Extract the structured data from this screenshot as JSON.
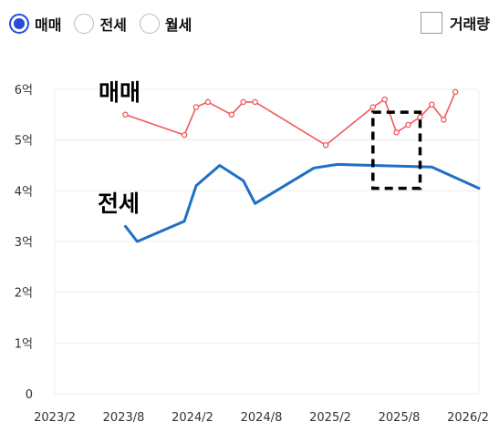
{
  "controls": {
    "radios": [
      {
        "label": "매매",
        "selected": true
      },
      {
        "label": "전세",
        "selected": false
      },
      {
        "label": "월세",
        "selected": false
      }
    ],
    "volume_checkbox": {
      "label": "거래량",
      "checked": false
    },
    "accent_color": "#2a4bd7"
  },
  "chart_data": {
    "type": "line",
    "x_labels": [
      "2023/2",
      "2023/8",
      "2024/2",
      "2024/8",
      "2025/2",
      "2025/8",
      "2026/2"
    ],
    "y_ticks": [
      0,
      1,
      2,
      3,
      4,
      5,
      6
    ],
    "y_tick_labels": [
      "0",
      "1억",
      "2억",
      "3억",
      "4억",
      "5억",
      "6억"
    ],
    "ylim": [
      0,
      6
    ],
    "xlim": [
      "2023-02",
      "2026-02"
    ],
    "grid": true,
    "series": [
      {
        "name": "매매",
        "color": "#f0595c",
        "markers": true,
        "points": [
          [
            "2023-08",
            5.5
          ],
          [
            "2024-01",
            5.1
          ],
          [
            "2024-02",
            5.65
          ],
          [
            "2024-03",
            5.75
          ],
          [
            "2024-05",
            5.5
          ],
          [
            "2024-06",
            5.75
          ],
          [
            "2024-07",
            5.75
          ],
          [
            "2025-01",
            4.9
          ],
          [
            "2025-05",
            5.65
          ],
          [
            "2025-06",
            5.8
          ],
          [
            "2025-07",
            5.15
          ],
          [
            "2025-08",
            5.3
          ],
          [
            "2025-09",
            5.45
          ],
          [
            "2025-10",
            5.7
          ],
          [
            "2025-11",
            5.4
          ],
          [
            "2025-12",
            5.95
          ]
        ]
      },
      {
        "name": "전세",
        "color": "#1f6fc5",
        "markers": false,
        "points": [
          [
            "2023-08",
            3.3
          ],
          [
            "2023-09",
            3.0
          ],
          [
            "2024-01",
            3.4
          ],
          [
            "2024-02",
            4.1
          ],
          [
            "2024-04",
            4.5
          ],
          [
            "2024-06",
            4.2
          ],
          [
            "2024-07",
            3.75
          ],
          [
            "2024-12",
            4.45
          ],
          [
            "2025-02",
            4.52
          ],
          [
            "2025-10",
            4.47
          ],
          [
            "2026-02",
            4.05
          ]
        ]
      }
    ],
    "annotations": [
      {
        "type": "text",
        "text": "매매",
        "series": "매매"
      },
      {
        "type": "text",
        "text": "전세",
        "series": "전세"
      },
      {
        "type": "dashed-rect",
        "x_range": [
          "2025-05",
          "2025-09"
        ],
        "y_range": [
          4.05,
          5.55
        ]
      }
    ]
  }
}
